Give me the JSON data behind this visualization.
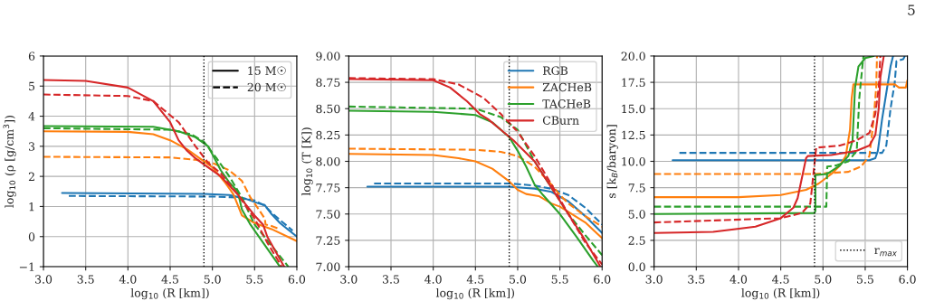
{
  "chart_data": [
    {
      "type": "line",
      "xlabel": "log$_{10}$ (R [km])",
      "ylabel": "log$_{10}$ (ρ [g/cm$^{3}$])",
      "xlim": [
        3.0,
        6.0
      ],
      "ylim": [
        -1,
        6
      ],
      "xticks": [
        {
          "value": 3.0,
          "label": "3.0"
        },
        {
          "value": 3.5,
          "label": "3.5"
        },
        {
          "value": 4.0,
          "label": "4.0"
        },
        {
          "value": 4.5,
          "label": "4.5"
        },
        {
          "value": 5.0,
          "label": "5.0"
        },
        {
          "value": 5.5,
          "label": "5.5"
        },
        {
          "value": 6.0,
          "label": "6.0"
        }
      ],
      "yticks": [
        {
          "value": -1,
          "label": "−1"
        },
        0,
        1,
        2,
        3,
        4,
        5,
        6
      ],
      "grid": true,
      "legend": "upper right",
      "annotations": [
        "15 M☉",
        "20 M☉"
      ],
      "ref_lines": [
        {
          "axis": "x",
          "value": 4.9,
          "line_style": "dotted",
          "color": "#000000"
        }
      ],
      "series": [
        {
          "color": "#1f77b4",
          "line_style": "solid",
          "x": [
            3.22,
            4.9,
            5.2,
            5.4,
            5.55,
            5.62,
            5.7,
            5.8,
            6.0
          ],
          "values": [
            1.45,
            1.42,
            1.38,
            1.25,
            1.1,
            1.05,
            0.75,
            0.45,
            0.0
          ]
        },
        {
          "color": "#1f77b4",
          "line_style": "dashed",
          "x": [
            3.3,
            5.0,
            5.3,
            5.5,
            5.62,
            5.7,
            5.8,
            5.95
          ],
          "values": [
            1.35,
            1.33,
            1.3,
            1.2,
            1.02,
            0.8,
            0.55,
            0.2
          ]
        },
        {
          "color": "#ff7f0e",
          "line_style": "solid",
          "x": [
            3.0,
            4.0,
            4.3,
            4.5,
            4.7,
            4.85,
            5.0,
            5.15,
            5.25,
            5.35,
            5.5,
            5.7,
            6.0
          ],
          "values": [
            3.5,
            3.48,
            3.4,
            3.2,
            2.9,
            2.6,
            2.3,
            1.8,
            1.4,
            0.7,
            0.45,
            0.25,
            -0.15
          ]
        },
        {
          "color": "#ff7f0e",
          "line_style": "dashed",
          "x": [
            3.0,
            4.5,
            4.8,
            5.0,
            5.2,
            5.35,
            5.45,
            5.55,
            5.62,
            5.63,
            5.7,
            5.8
          ],
          "values": [
            2.65,
            2.63,
            2.55,
            2.45,
            2.2,
            1.85,
            1.3,
            0.9,
            0.6,
            0.4,
            0.35,
            0.25
          ]
        },
        {
          "color": "#2ca02c",
          "line_style": "solid",
          "x": [
            3.0,
            4.3,
            4.6,
            4.8,
            4.95,
            5.1,
            5.2,
            5.3,
            5.35,
            5.45,
            5.6,
            5.75,
            5.8
          ],
          "values": [
            3.67,
            3.65,
            3.5,
            3.3,
            3.0,
            2.2,
            1.8,
            1.5,
            0.9,
            0.4,
            -0.2,
            -0.8,
            -1.0
          ]
        },
        {
          "color": "#2ca02c",
          "line_style": "dashed",
          "x": [
            3.0,
            4.5,
            4.75,
            4.9,
            5.05,
            5.2,
            5.35,
            5.5,
            5.7,
            5.9
          ],
          "values": [
            3.6,
            3.55,
            3.4,
            3.15,
            2.6,
            2.0,
            1.3,
            0.4,
            -0.3,
            -1.0
          ]
        },
        {
          "color": "#d62728",
          "line_style": "solid",
          "x": [
            3.0,
            3.5,
            4.0,
            4.3,
            4.5,
            4.6,
            4.7,
            4.8,
            4.9,
            5.1,
            5.3,
            5.5,
            5.6,
            5.65,
            5.75,
            5.85
          ],
          "values": [
            5.2,
            5.17,
            4.95,
            4.5,
            3.8,
            3.2,
            2.85,
            2.6,
            2.4,
            2.0,
            1.4,
            0.7,
            0.4,
            0.0,
            -0.5,
            -1.0
          ]
        },
        {
          "color": "#d62728",
          "line_style": "dashed",
          "x": [
            3.0,
            4.0,
            4.3,
            4.6,
            4.8,
            4.95,
            5.1,
            5.3,
            5.5,
            5.65,
            5.8,
            5.82
          ],
          "values": [
            4.72,
            4.67,
            4.5,
            3.8,
            3.0,
            2.45,
            2.1,
            1.4,
            0.6,
            -0.2,
            -0.9,
            -1.0
          ]
        }
      ]
    },
    {
      "type": "line",
      "xlabel": "log$_{10}$ (R [km])",
      "ylabel": "log$_{10}$ (T [K])",
      "xlim": [
        3.0,
        6.0
      ],
      "ylim": [
        7.0,
        9.0
      ],
      "xticks": [
        {
          "value": 3.0,
          "label": "3.0"
        },
        {
          "value": 3.5,
          "label": "3.5"
        },
        {
          "value": 4.0,
          "label": "4.0"
        },
        {
          "value": 4.5,
          "label": "4.5"
        },
        {
          "value": 5.0,
          "label": "5.0"
        },
        {
          "value": 5.5,
          "label": "5.5"
        },
        {
          "value": 6.0,
          "label": "6.0"
        }
      ],
      "yticks": [
        {
          "value": 7.0,
          "label": "7.00"
        },
        {
          "value": 7.25,
          "label": "7.25"
        },
        {
          "value": 7.5,
          "label": "7.50"
        },
        {
          "value": 7.75,
          "label": "7.75"
        },
        {
          "value": 8.0,
          "label": "8.00"
        },
        {
          "value": 8.25,
          "label": "8.25"
        },
        {
          "value": 8.5,
          "label": "8.50"
        },
        {
          "value": 8.75,
          "label": "8.75"
        },
        {
          "value": 9.0,
          "label": "9.00"
        }
      ],
      "grid": true,
      "legend": "upper right",
      "ref_lines": [
        {
          "axis": "x",
          "value": 4.9,
          "line_style": "dotted",
          "color": "#000000"
        }
      ],
      "series": [
        {
          "name": "RGB",
          "color": "#1f77b4",
          "line_style": "solid",
          "x": [
            3.22,
            4.9,
            5.2,
            5.4,
            5.6,
            5.8,
            6.0
          ],
          "values": [
            7.76,
            7.76,
            7.74,
            7.71,
            7.62,
            7.48,
            7.32
          ]
        },
        {
          "color": "#1f77b4",
          "line_style": "dashed",
          "x": [
            3.3,
            4.9,
            5.2,
            5.4,
            5.6,
            5.8,
            6.0
          ],
          "values": [
            7.79,
            7.79,
            7.77,
            7.74,
            7.68,
            7.56,
            7.4
          ]
        },
        {
          "name": "ZACHeB",
          "color": "#ff7f0e",
          "line_style": "solid",
          "x": [
            3.0,
            4.0,
            4.3,
            4.5,
            4.7,
            4.9,
            5.0,
            5.1,
            5.25,
            5.4,
            5.5,
            5.6,
            5.8,
            6.0
          ],
          "values": [
            8.07,
            8.06,
            8.03,
            8.0,
            7.93,
            7.81,
            7.73,
            7.69,
            7.67,
            7.6,
            7.57,
            7.52,
            7.42,
            7.27
          ]
        },
        {
          "color": "#ff7f0e",
          "line_style": "dashed",
          "x": [
            3.0,
            4.5,
            4.8,
            5.0,
            5.2,
            5.4,
            5.5,
            5.6,
            5.8,
            6.0
          ],
          "values": [
            8.12,
            8.11,
            8.09,
            8.05,
            7.95,
            7.78,
            7.68,
            7.6,
            7.48,
            7.38
          ]
        },
        {
          "name": "TACHeB",
          "color": "#2ca02c",
          "line_style": "solid",
          "x": [
            3.0,
            4.0,
            4.5,
            4.7,
            4.9,
            5.0,
            5.1,
            5.2,
            5.3,
            5.5,
            5.7,
            5.9,
            5.95
          ],
          "values": [
            8.48,
            8.47,
            8.44,
            8.37,
            8.23,
            8.1,
            7.95,
            7.78,
            7.68,
            7.5,
            7.28,
            7.05,
            7.0
          ]
        },
        {
          "color": "#2ca02c",
          "line_style": "dashed",
          "x": [
            3.0,
            4.5,
            4.8,
            5.0,
            5.2,
            5.4,
            5.6,
            5.8,
            6.0
          ],
          "values": [
            8.52,
            8.5,
            8.42,
            8.3,
            8.0,
            7.75,
            7.5,
            7.3,
            7.11
          ]
        },
        {
          "name": "CBurn",
          "color": "#d62728",
          "line_style": "solid",
          "x": [
            3.0,
            4.0,
            4.2,
            4.4,
            4.55,
            4.65,
            4.8,
            4.95,
            5.2,
            5.4,
            5.6,
            5.8,
            5.98
          ],
          "values": [
            8.78,
            8.77,
            8.7,
            8.57,
            8.45,
            8.4,
            8.3,
            8.2,
            8.0,
            7.75,
            7.5,
            7.25,
            7.0
          ]
        },
        {
          "color": "#d62728",
          "line_style": "dashed",
          "x": [
            3.0,
            4.0,
            4.3,
            4.6,
            4.8,
            5.0,
            5.2,
            5.4,
            5.6,
            5.8,
            6.0
          ],
          "values": [
            8.79,
            8.78,
            8.73,
            8.6,
            8.45,
            8.28,
            8.05,
            7.78,
            7.5,
            7.23,
            7.02
          ]
        }
      ]
    },
    {
      "type": "line",
      "xlabel": "log$_{10}$ (R [km])",
      "ylabel": "s [k$_{B}$/baryon]",
      "xlim": [
        3.0,
        6.0
      ],
      "ylim": [
        0.0,
        20.0
      ],
      "xticks": [
        {
          "value": 3.0,
          "label": "3.0"
        },
        {
          "value": 3.5,
          "label": "3.5"
        },
        {
          "value": 4.0,
          "label": "4.0"
        },
        {
          "value": 4.5,
          "label": "4.5"
        },
        {
          "value": 5.0,
          "label": "5.0"
        },
        {
          "value": 5.5,
          "label": "5.5"
        },
        {
          "value": 6.0,
          "label": "6.0"
        }
      ],
      "yticks": [
        {
          "value": 0,
          "label": "0.0"
        },
        {
          "value": 2.5,
          "label": "2.5"
        },
        {
          "value": 5,
          "label": "5.0"
        },
        {
          "value": 7.5,
          "label": "7.5"
        },
        {
          "value": 10,
          "label": "10.0"
        },
        {
          "value": 12.5,
          "label": "12.5"
        },
        {
          "value": 15,
          "label": "15.0"
        },
        {
          "value": 17.5,
          "label": "17.5"
        },
        {
          "value": 20,
          "label": "20.0"
        }
      ],
      "grid": true,
      "legend": "lower right",
      "annotations": [
        "5"
      ],
      "ref_lines": [
        {
          "axis": "x",
          "value": 4.9,
          "line_style": "dotted",
          "color": "#000000",
          "label": "r$_{max}$"
        }
      ],
      "series": [
        {
          "color": "#1f77b4",
          "line_style": "solid",
          "x": [
            3.22,
            5.55,
            5.62,
            5.65,
            5.7,
            5.75,
            5.8,
            5.83
          ],
          "values": [
            10.1,
            10.1,
            10.3,
            11,
            14,
            16.5,
            19,
            20
          ]
        },
        {
          "color": "#1f77b4",
          "line_style": "dashed",
          "x": [
            3.3,
            5.7,
            5.75,
            5.8,
            5.85,
            5.87,
            5.95,
            5.97
          ],
          "values": [
            10.8,
            10.8,
            11.5,
            15,
            17.5,
            19.5,
            19.7,
            20
          ]
        },
        {
          "color": "#ff7f0e",
          "line_style": "solid",
          "x": [
            3.0,
            4.0,
            4.5,
            4.8,
            4.95,
            5.1,
            5.2,
            5.27,
            5.32,
            5.34,
            5.36,
            5.7,
            5.85,
            5.9,
            5.98,
            6.0
          ],
          "values": [
            6.6,
            6.6,
            6.8,
            7.3,
            7.9,
            8.8,
            9.6,
            10.5,
            13,
            16,
            17.3,
            17.3,
            17.3,
            17.0,
            17.0,
            17.7
          ]
        },
        {
          "color": "#ff7f0e",
          "line_style": "dashed",
          "x": [
            3.0,
            4.9,
            5.1,
            5.3,
            5.45,
            5.55,
            5.6,
            5.63,
            5.64
          ],
          "values": [
            8.8,
            8.8,
            8.9,
            9.0,
            9.5,
            10.5,
            14,
            17,
            20
          ]
        },
        {
          "color": "#2ca02c",
          "line_style": "solid",
          "x": [
            3.0,
            4.9,
            4.91,
            4.91,
            5.05,
            5.2,
            5.3,
            5.35,
            5.38,
            5.42,
            5.5,
            5.6
          ],
          "values": [
            5.0,
            5.1,
            5.3,
            8.7,
            8.8,
            9.6,
            10.5,
            12,
            17,
            19,
            19.8,
            20
          ]
        },
        {
          "color": "#2ca02c",
          "line_style": "dashed",
          "x": [
            3.0,
            5.04,
            5.05,
            5.15,
            5.3,
            5.4,
            5.43,
            5.47,
            5.48
          ],
          "values": [
            5.7,
            5.7,
            9.5,
            9.6,
            10,
            11,
            16,
            19.3,
            20
          ]
        },
        {
          "color": "#d62728",
          "line_style": "solid",
          "x": [
            3.0,
            3.7,
            4.2,
            4.5,
            4.65,
            4.7,
            4.8,
            4.82,
            5.1,
            5.4,
            5.55,
            5.62,
            5.66,
            5.68,
            5.72
          ],
          "values": [
            3.2,
            3.3,
            3.8,
            4.6,
            5.6,
            6.5,
            10.3,
            10.5,
            10.6,
            11.0,
            11.5,
            12.5,
            15,
            18,
            20
          ]
        },
        {
          "color": "#d62728",
          "line_style": "dashed",
          "x": [
            3.0,
            4.5,
            4.75,
            4.85,
            4.92,
            5.2,
            5.4,
            5.55,
            5.62,
            5.66,
            5.68
          ],
          "values": [
            4.2,
            4.6,
            5.1,
            6,
            11.3,
            11.5,
            12.0,
            12.7,
            14.5,
            17,
            20
          ]
        }
      ]
    }
  ]
}
